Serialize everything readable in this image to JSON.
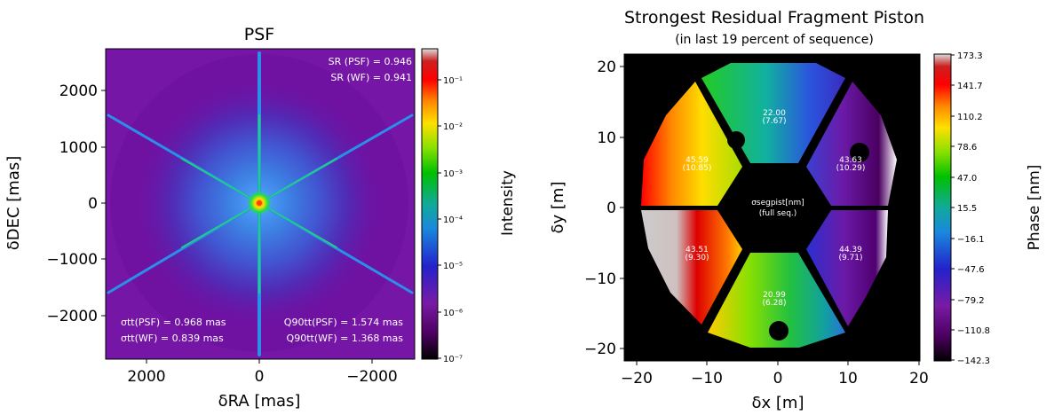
{
  "chart_data": [
    {
      "type": "heatmap",
      "title": "PSF",
      "xlabel": "δRA [mas]",
      "ylabel": "δDEC [mas]",
      "xlim": [
        2700,
        -2700
      ],
      "ylim": [
        -2700,
        2700
      ],
      "x_ticks": [
        "2000",
        "0",
        "−2000"
      ],
      "y_ticks": [
        "2000",
        "1000",
        "0",
        "−1000",
        "−2000"
      ],
      "colorbar": {
        "label": "Intensity",
        "scale": "log",
        "range": [
          1e-07,
          0.5
        ],
        "ticks": [
          "10⁻¹",
          "10⁻²",
          "10⁻³",
          "10⁻⁴",
          "10⁻⁵",
          "10⁻⁶",
          "10⁻⁷"
        ]
      },
      "annotations": {
        "sr_psf": "SR (PSF) = 0.946",
        "sr_wf": "SR (WF) = 0.941",
        "sigma_psf": "σtt(PSF) = 0.968 mas",
        "sigma_wf": "σtt(WF) = 0.839 mas",
        "q90_psf": "Q90tt(PSF) = 1.574 mas",
        "q90_wf": "Q90tt(WF) = 1.368 mas"
      }
    },
    {
      "type": "heatmap",
      "title": "Strongest Residual Fragment Piston",
      "subtitle": "(in last 19 percent of sequence)",
      "xlabel": "δx [m]",
      "ylabel": "δy [m]",
      "xlim": [
        -21,
        21
      ],
      "ylim": [
        -21,
        21
      ],
      "x_ticks": [
        "−20",
        "−10",
        "0",
        "10",
        "20"
      ],
      "y_ticks": [
        "20",
        "10",
        "0",
        "−10",
        "−20"
      ],
      "colorbar": {
        "label": "Phase [nm]",
        "range": [
          -142.3,
          173.3
        ],
        "ticks": [
          "173.3",
          "141.7",
          "110.2",
          "78.6",
          "47.0",
          "15.5",
          "−16.1",
          "−47.6",
          "−79.2",
          "−110.8",
          "−142.3"
        ]
      },
      "center_label": {
        "line1": "σsegpist[nm]",
        "line2": "(full seq.)"
      },
      "segments": [
        {
          "id": "top",
          "rms": "22.00",
          "full": "(7.67)"
        },
        {
          "id": "upper-left",
          "rms": "45.59",
          "full": "(10.85)"
        },
        {
          "id": "upper-right",
          "rms": "43.63",
          "full": "(10.29)"
        },
        {
          "id": "lower-left",
          "rms": "43.51",
          "full": "(9.30)"
        },
        {
          "id": "lower-right",
          "rms": "44.39",
          "full": "(9.71)"
        },
        {
          "id": "bottom",
          "rms": "20.99",
          "full": "(6.28)"
        }
      ]
    }
  ]
}
